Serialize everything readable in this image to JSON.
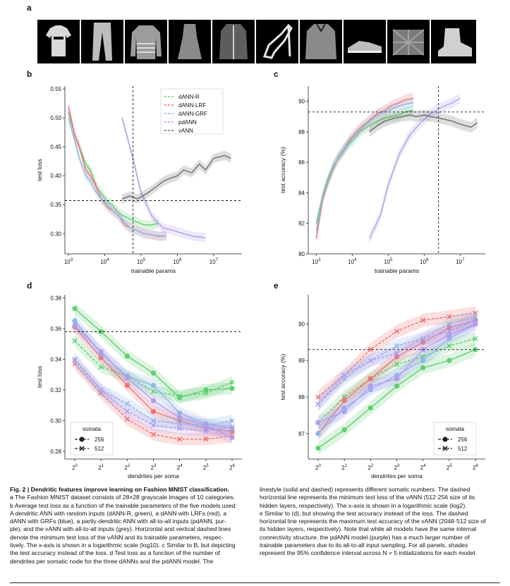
{
  "panels": {
    "a": "a",
    "b": "b",
    "c": "c",
    "d": "d",
    "e": "e"
  },
  "fashion_items": [
    "t-shirt",
    "trouser",
    "pullover",
    "dress",
    "coat",
    "sandal",
    "shirt",
    "sneaker",
    "bag",
    "ankle-boot"
  ],
  "caption": {
    "fig_label": "Fig. 2 | Dendritic features improve learning on Fashion MNIST classification.",
    "line_a": "a The Fashion MNIST dataset consists of 28×28 grayscale images of 10 categories.",
    "b_lines": [
      "b Average test loss as a function of the trainable parameters of the five models used:",
      "A dendritic ANN with random inputs (dANN-R, green), a dANN with LRFs (red), a",
      "dANN with GRFs (blue), a partly-dendritic ANN with all-to-all inputs (pdANN, pur-",
      "ple), and the vANN with all-to-all inputs (grey). Horizontal and vertical dashed lines",
      "denote the minimum test loss of the vANN and its trainable parameters, respec-",
      "tively. The x-axis is shown in a logarithmic scale (log10). c Similar to B, but depicting",
      "the test accuracy instead of the loss. d Test loss as a function of the number of",
      "dendrites per somatic node for the three dANNs and the pdANN model. The"
    ],
    "right_lines": [
      "linestyle (solid and dashed) represents different somatic numbers. The dashed",
      "horizontal line represents the minimum test loss of the vANN (512·256 size of its",
      "hidden layers, respectively). The x-axis is shown in a logarithmic scale (log2).",
      "e Similar to (d), but showing the test accuracy instead of the loss. The dashed",
      "horizontal line represents the maximum test accuracy of the vANN (2048·512 size of",
      "its hidden layers, respectively). Note that while all models have the same internal",
      "connectivity structure, the pdANN model (purple) has a much larger number of",
      "trainable parameters due to its all-to-all input sampling. For all panels, shades",
      "represent the 95% confidence interval across N = 5 initializations for each model."
    ]
  },
  "colors": {
    "green": "#5fce70",
    "red": "#ef7272",
    "blue": "#8fb6e8",
    "purple": "#b19cec",
    "grey": "#6b6b6b"
  },
  "chart_data": [
    {
      "id": "b",
      "type": "line",
      "xlabel": "trainable params",
      "ylabel": "test loss",
      "xscale": "log10",
      "xlim": [
        800,
        60000000
      ],
      "ylim": [
        0.265,
        0.555
      ],
      "xticks": [
        "10^3",
        "10^4",
        "10^5",
        "10^6",
        "10^7"
      ],
      "yticks": [
        0.3,
        0.35,
        0.4,
        0.45,
        0.5,
        0.55
      ],
      "hline": 0.357,
      "vline": 60000,
      "legend": [
        "dANN-R",
        "dANN-LRF",
        "dANN-GRF",
        "pdANN",
        "vANN"
      ],
      "legend_position": "top-right",
      "series": [
        {
          "name": "dANN-R",
          "color": "#5fce70",
          "x": [
            1000,
            1500,
            2000,
            3000,
            4000,
            6000,
            8000,
            12000,
            16000,
            25000,
            35000,
            50000,
            80000,
            120000,
            200000,
            300000
          ],
          "values": [
            0.51,
            0.47,
            0.45,
            0.42,
            0.41,
            0.38,
            0.37,
            0.355,
            0.35,
            0.335,
            0.33,
            0.325,
            0.32,
            0.315,
            0.315,
            0.318
          ]
        },
        {
          "name": "dANN-LRF",
          "color": "#ef7272",
          "x": [
            1000,
            1500,
            2000,
            3000,
            4000,
            6000,
            8000,
            12000,
            16000,
            25000,
            35000,
            50000,
            80000,
            120000,
            200000,
            300000,
            500000
          ],
          "values": [
            0.52,
            0.47,
            0.45,
            0.41,
            0.4,
            0.38,
            0.36,
            0.345,
            0.34,
            0.33,
            0.315,
            0.31,
            0.305,
            0.3,
            0.298,
            0.295,
            0.296
          ]
        },
        {
          "name": "dANN-GRF",
          "color": "#8fb6e8",
          "x": [
            1000,
            1500,
            2000,
            3000,
            4000,
            6000,
            8000,
            12000,
            16000,
            25000,
            35000,
            50000,
            80000,
            120000,
            200000,
            300000,
            500000
          ],
          "values": [
            0.5,
            0.46,
            0.43,
            0.4,
            0.39,
            0.37,
            0.36,
            0.35,
            0.34,
            0.33,
            0.32,
            0.31,
            0.305,
            0.3,
            0.298,
            0.296,
            0.296
          ]
        },
        {
          "name": "pdANN",
          "color": "#b19cec",
          "x": [
            30000,
            60000,
            100000,
            200000,
            400000,
            800000,
            1500000,
            3000000,
            6000000
          ],
          "values": [
            0.5,
            0.43,
            0.37,
            0.33,
            0.31,
            0.305,
            0.3,
            0.295,
            0.293
          ]
        },
        {
          "name": "vANN",
          "color": "#6b6b6b",
          "x": [
            30000,
            50000,
            80000,
            150000,
            250000,
            400000,
            600000,
            1000000,
            1500000,
            2500000,
            4000000,
            6000000,
            10000000,
            20000000,
            30000000
          ],
          "values": [
            0.36,
            0.365,
            0.36,
            0.37,
            0.38,
            0.39,
            0.395,
            0.4,
            0.41,
            0.405,
            0.42,
            0.41,
            0.43,
            0.435,
            0.43
          ]
        }
      ]
    },
    {
      "id": "c",
      "type": "line",
      "xlabel": "trainable params",
      "ylabel": "test accuracy (%)",
      "xscale": "log10",
      "xlim": [
        600,
        50000000
      ],
      "ylim": [
        80,
        91
      ],
      "xticks": [
        "10^3",
        "10^4",
        "10^5",
        "10^6",
        "10^7"
      ],
      "yticks": [
        80,
        82,
        84,
        86,
        88,
        90
      ],
      "hline": 89.3,
      "vline": 2500000,
      "series": [
        {
          "name": "dANN-R",
          "color": "#5fce70",
          "x": [
            1000,
            1500,
            2000,
            3000,
            4000,
            6000,
            8000,
            12000,
            16000,
            25000,
            35000,
            50000,
            80000,
            120000,
            200000,
            300000,
            500000
          ],
          "values": [
            82.0,
            83.8,
            84.8,
            85.8,
            86.2,
            86.8,
            87.2,
            87.6,
            88.0,
            88.3,
            88.5,
            88.7,
            88.9,
            89.0,
            89.1,
            89.3,
            89.4
          ]
        },
        {
          "name": "dANN-LRF",
          "color": "#ef7272",
          "x": [
            1000,
            1500,
            2000,
            3000,
            4000,
            6000,
            8000,
            12000,
            16000,
            25000,
            35000,
            50000,
            80000,
            120000,
            200000,
            300000,
            500000
          ],
          "values": [
            81.0,
            83.5,
            84.5,
            85.6,
            86.3,
            86.9,
            87.4,
            87.9,
            88.2,
            88.6,
            88.9,
            89.2,
            89.4,
            89.7,
            89.9,
            90.1,
            90.2
          ]
        },
        {
          "name": "dANN-GRF",
          "color": "#8fb6e8",
          "x": [
            1000,
            1500,
            2000,
            3000,
            4000,
            6000,
            8000,
            12000,
            16000,
            25000,
            35000,
            50000,
            80000,
            120000,
            200000,
            300000,
            500000
          ],
          "values": [
            81.5,
            83.7,
            84.6,
            85.7,
            86.3,
            86.9,
            87.3,
            87.8,
            88.1,
            88.5,
            88.8,
            89.1,
            89.3,
            89.5,
            89.7,
            89.8,
            89.9
          ]
        },
        {
          "name": "pdANN",
          "color": "#b19cec",
          "x": [
            30000,
            60000,
            100000,
            200000,
            400000,
            800000,
            1500000,
            3000000,
            6000000,
            10000000
          ],
          "values": [
            81.0,
            82.5,
            84.5,
            86.5,
            87.8,
            88.6,
            89.2,
            89.6,
            89.9,
            90.2
          ]
        },
        {
          "name": "vANN",
          "color": "#6b6b6b",
          "x": [
            30000,
            50000,
            80000,
            150000,
            250000,
            400000,
            600000,
            1000000,
            1500000,
            2500000,
            4000000,
            6000000,
            10000000,
            20000000,
            30000000
          ],
          "values": [
            88.0,
            88.4,
            88.7,
            88.9,
            89.0,
            89.1,
            89.0,
            89.1,
            89.0,
            88.9,
            88.8,
            88.7,
            88.5,
            88.3,
            88.6
          ]
        }
      ]
    },
    {
      "id": "d",
      "type": "line",
      "xlabel": "dendrites per soma",
      "ylabel": "test loss",
      "xscale": "log2",
      "categories": [
        "2^0",
        "2^1",
        "2^2",
        "2^3",
        "2^4",
        "2^5",
        "2^6"
      ],
      "ylim": [
        0.275,
        0.382
      ],
      "yticks": [
        0.28,
        0.3,
        0.32,
        0.34,
        0.36,
        0.38
      ],
      "hline": 0.358,
      "legend_title": "somata",
      "legend": [
        "256",
        "512"
      ],
      "legend_position": "bottom-left",
      "series": [
        {
          "name": "dANN-R",
          "somata": "256",
          "color": "#5fce70",
          "marker": "circle",
          "values": [
            0.373,
            0.358,
            0.342,
            0.331,
            0.315,
            0.32,
            0.321
          ]
        },
        {
          "name": "dANN-R",
          "somata": "512",
          "color": "#5fce70",
          "marker": "x",
          "values": [
            0.352,
            0.335,
            0.329,
            0.319,
            0.316,
            0.318,
            0.325
          ]
        },
        {
          "name": "dANN-LRF",
          "somata": "256",
          "color": "#ef7272",
          "marker": "circle",
          "values": [
            0.361,
            0.341,
            0.323,
            0.306,
            0.3,
            0.295,
            0.293
          ]
        },
        {
          "name": "dANN-LRF",
          "somata": "512",
          "color": "#ef7272",
          "marker": "x",
          "values": [
            0.337,
            0.318,
            0.301,
            0.291,
            0.288,
            0.288,
            0.29
          ]
        },
        {
          "name": "dANN-GRF",
          "somata": "256",
          "color": "#8fb6e8",
          "marker": "circle",
          "values": [
            0.365,
            0.344,
            0.329,
            0.323,
            0.305,
            0.298,
            0.295
          ]
        },
        {
          "name": "dANN-GRF",
          "somata": "512",
          "color": "#8fb6e8",
          "marker": "x",
          "values": [
            0.34,
            0.32,
            0.311,
            0.3,
            0.298,
            0.297,
            0.3
          ]
        },
        {
          "name": "pdANN",
          "somata": "256",
          "color": "#b19cec",
          "marker": "circle",
          "values": [
            0.362,
            0.345,
            0.328,
            0.313,
            0.302,
            0.297,
            0.289
          ]
        },
        {
          "name": "pdANN",
          "somata": "512",
          "color": "#b19cec",
          "marker": "x",
          "values": [
            0.339,
            0.32,
            0.306,
            0.297,
            0.295,
            0.293,
            0.296
          ]
        }
      ]
    },
    {
      "id": "e",
      "type": "line",
      "xlabel": "dendrites per soma",
      "ylabel": "test accuracy (%)",
      "xscale": "log2",
      "categories": [
        "2^0",
        "2^1",
        "2^2",
        "2^3",
        "2^4",
        "2^5",
        "2^6"
      ],
      "ylim": [
        86.3,
        90.8
      ],
      "yticks": [
        87,
        88,
        89,
        90
      ],
      "hline": 89.3,
      "legend_title": "somata",
      "legend": [
        "256",
        "512"
      ],
      "legend_position": "bottom-right",
      "series": [
        {
          "name": "dANN-R",
          "somata": "256",
          "color": "#5fce70",
          "marker": "circle",
          "values": [
            86.6,
            87.1,
            87.7,
            88.3,
            88.8,
            89.0,
            89.3
          ]
        },
        {
          "name": "dANN-R",
          "somata": "512",
          "color": "#5fce70",
          "marker": "x",
          "values": [
            87.3,
            88.0,
            88.5,
            88.9,
            89.1,
            89.4,
            89.6
          ]
        },
        {
          "name": "dANN-LRF",
          "somata": "256",
          "color": "#ef7272",
          "marker": "circle",
          "values": [
            87.0,
            87.9,
            88.5,
            89.1,
            89.5,
            89.9,
            90.1
          ]
        },
        {
          "name": "dANN-LRF",
          "somata": "512",
          "color": "#ef7272",
          "marker": "x",
          "values": [
            88.0,
            88.6,
            89.3,
            89.8,
            90.1,
            90.2,
            90.3
          ]
        },
        {
          "name": "dANN-GRF",
          "somata": "256",
          "color": "#8fb6e8",
          "marker": "circle",
          "values": [
            87.0,
            87.7,
            88.2,
            88.6,
            89.0,
            89.6,
            90.0
          ]
        },
        {
          "name": "dANN-GRF",
          "somata": "512",
          "color": "#8fb6e8",
          "marker": "x",
          "values": [
            87.8,
            88.5,
            89.0,
            89.4,
            89.6,
            90.0,
            90.2
          ]
        },
        {
          "name": "pdANN",
          "somata": "256",
          "color": "#b19cec",
          "marker": "circle",
          "values": [
            87.3,
            87.6,
            88.3,
            88.5,
            89.3,
            89.7,
            90.0
          ]
        },
        {
          "name": "pdANN",
          "somata": "512",
          "color": "#b19cec",
          "marker": "x",
          "values": [
            87.8,
            88.6,
            89.0,
            89.2,
            89.6,
            89.8,
            90.1
          ]
        }
      ]
    }
  ]
}
